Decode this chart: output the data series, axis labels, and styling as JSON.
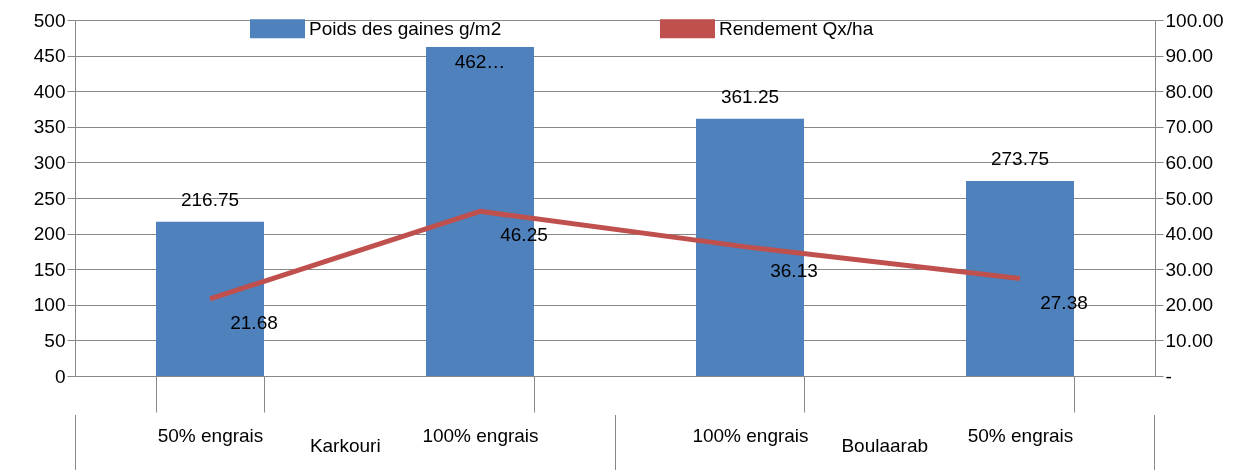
{
  "chart_data": {
    "type": "bar",
    "categories": [
      "50% engrais",
      "100% engrais",
      "100% engrais",
      "50% engrais"
    ],
    "series": [
      {
        "name": "Poids des gaines g/m2",
        "color": "#4f81bd",
        "values": [
          216.75,
          462,
          361.25,
          273.75
        ],
        "value_labels": [
          "216.75",
          "462…",
          "361.25",
          "273.75"
        ]
      },
      {
        "name": "Rendement Qx/ha",
        "type": "line",
        "axis": "y2",
        "color": "#c0504d",
        "values": [
          21.68,
          46.25,
          36.13,
          27.38
        ],
        "value_labels": [
          "21.68",
          "46.25",
          "36.13",
          "27.38"
        ]
      }
    ],
    "ylim": [
      0,
      500
    ],
    "yticks": [
      0,
      50,
      100,
      150,
      200,
      250,
      300,
      350,
      400,
      450,
      500
    ],
    "y2lim": [
      0,
      100
    ],
    "y2ticks": [
      {
        "value": 0,
        "label": "-"
      },
      {
        "value": 10,
        "label": "10.00"
      },
      {
        "value": 20,
        "label": "20.00"
      },
      {
        "value": 30,
        "label": "30.00"
      },
      {
        "value": 40,
        "label": "40.00"
      },
      {
        "value": 50,
        "label": "50.00"
      },
      {
        "value": 60,
        "label": "60.00"
      },
      {
        "value": 70,
        "label": "70.00"
      },
      {
        "value": 80,
        "label": "80.00"
      },
      {
        "value": 90,
        "label": "90.00"
      },
      {
        "value": 100,
        "label": "100.00"
      }
    ],
    "grid": "y",
    "legend": "top",
    "annotations": [
      "Karkouri",
      "Boulaarab"
    ]
  }
}
